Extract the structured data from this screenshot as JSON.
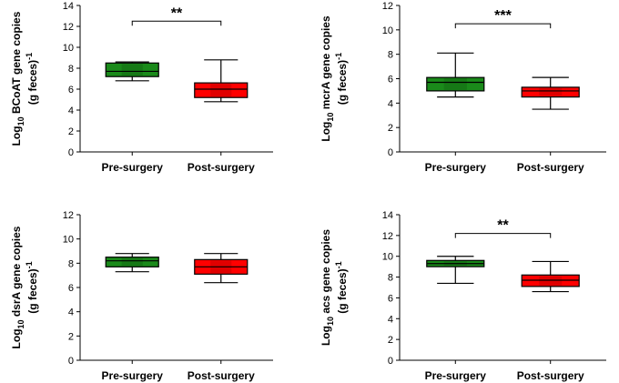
{
  "chart_data": [
    {
      "type": "box",
      "panel": "top-left",
      "ylabel_parts": [
        "Log",
        "10",
        " BCoAT gene copies",
        "(g feces)",
        "-1"
      ],
      "ylim": [
        0,
        14
      ],
      "yticks": [
        0,
        2,
        4,
        6,
        8,
        10,
        12,
        14
      ],
      "ytick_labels": [
        "0",
        "2",
        "4",
        "6",
        "8",
        "10",
        "12",
        "14"
      ],
      "categories": [
        "Pre-surgery",
        "Post-surgery"
      ],
      "series": [
        {
          "name": "Pre-surgery",
          "min": 6.8,
          "q1": 7.2,
          "median": 7.7,
          "q3": 8.5,
          "max": 8.6
        },
        {
          "name": "Post-surgery",
          "min": 4.8,
          "q1": 5.2,
          "median": 6.0,
          "q3": 6.6,
          "max": 8.8
        }
      ],
      "significance": "**",
      "bracket_y": 12.5,
      "colors": {
        "pre": "#1a8a1a",
        "post": "#ff0000"
      }
    },
    {
      "type": "box",
      "panel": "top-right",
      "ylabel_parts": [
        "Log",
        "10",
        " mcrA gene copies",
        "(g feces)",
        "-1"
      ],
      "ylim": [
        0,
        12
      ],
      "yticks": [
        0,
        2,
        4,
        6,
        8,
        10,
        12
      ],
      "ytick_labels": [
        "0",
        "2",
        "4",
        "6",
        "8",
        "10",
        "12"
      ],
      "categories": [
        "Pre-surgery",
        "Post-surgery"
      ],
      "series": [
        {
          "name": "Pre-surgery",
          "min": 4.5,
          "q1": 5.0,
          "median": 5.7,
          "q3": 6.1,
          "max": 8.1
        },
        {
          "name": "Post-surgery",
          "min": 3.5,
          "q1": 4.5,
          "median": 5.0,
          "q3": 5.3,
          "max": 6.1
        }
      ],
      "significance": "***",
      "bracket_y": 10.5,
      "colors": {
        "pre": "#1a8a1a",
        "post": "#ff0000"
      }
    },
    {
      "type": "box",
      "panel": "bottom-left",
      "ylabel_parts": [
        "Log",
        "10",
        " dsrA gene copies",
        "(g feces)",
        "-1"
      ],
      "ylim": [
        0,
        12
      ],
      "yticks": [
        0,
        2,
        4,
        6,
        8,
        10,
        12
      ],
      "ytick_labels": [
        "0",
        "2",
        "4",
        "6",
        "8",
        "10",
        "12"
      ],
      "categories": [
        "Pre-surgery",
        "Post-surgery"
      ],
      "series": [
        {
          "name": "Pre-surgery",
          "min": 7.3,
          "q1": 7.7,
          "median": 8.2,
          "q3": 8.5,
          "max": 8.8
        },
        {
          "name": "Post-surgery",
          "min": 6.4,
          "q1": 7.1,
          "median": 7.7,
          "q3": 8.3,
          "max": 8.8
        }
      ],
      "significance": "",
      "bracket_y": null,
      "colors": {
        "pre": "#1a8a1a",
        "post": "#ff0000"
      }
    },
    {
      "type": "box",
      "panel": "bottom-right",
      "ylabel_parts": [
        "Log",
        "10",
        " acs gene copies",
        "(g feces)",
        "-1"
      ],
      "ylim": [
        0,
        14
      ],
      "yticks": [
        0,
        2,
        4,
        6,
        8,
        10,
        12,
        14
      ],
      "ytick_labels": [
        "0",
        "2",
        "4",
        "6",
        "8",
        "10",
        "12",
        "14"
      ],
      "categories": [
        "Pre-surgery",
        "Post-surgery"
      ],
      "series": [
        {
          "name": "Pre-surgery",
          "min": 7.4,
          "q1": 9.0,
          "median": 9.3,
          "q3": 9.6,
          "max": 10.0
        },
        {
          "name": "Post-surgery",
          "min": 6.6,
          "q1": 7.1,
          "median": 7.7,
          "q3": 8.2,
          "max": 9.5
        }
      ],
      "significance": "**",
      "bracket_y": 12.2,
      "colors": {
        "pre": "#1a8a1a",
        "post": "#ff0000"
      }
    }
  ]
}
